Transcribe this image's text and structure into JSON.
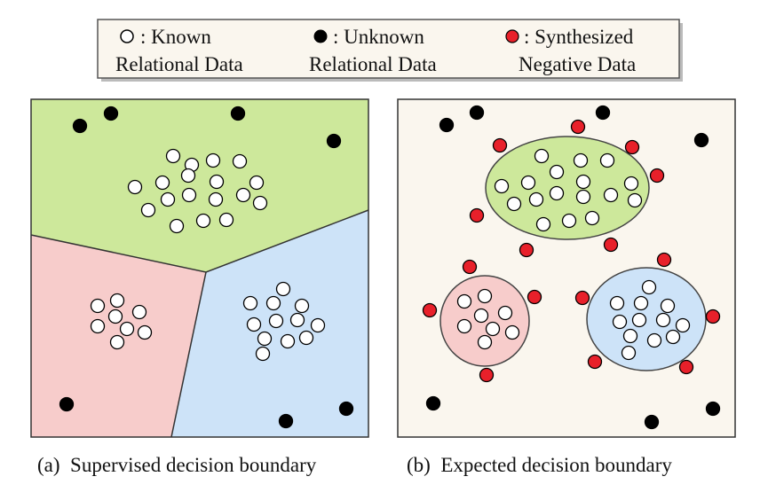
{
  "legend": {
    "items": [
      {
        "line1": ": Known",
        "line2": "Relational Data"
      },
      {
        "line1": ": Unknown",
        "line2": "Relational Data"
      },
      {
        "line1": ": Synthesized",
        "line2": "Negative Data"
      }
    ]
  },
  "panels": [
    {
      "caption": "(a)  Supervised decision boundary"
    },
    {
      "caption": "(b)  Expected decision boundary"
    }
  ]
}
